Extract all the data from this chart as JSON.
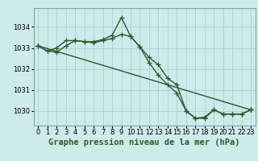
{
  "background_color": "#ceeaea",
  "grid_color": "#b0d4d4",
  "line_color": "#2d5a2d",
  "title": "Graphe pression niveau de la mer (hPa)",
  "xlim": [
    -0.5,
    23.5
  ],
  "ylim": [
    1029.3,
    1034.9
  ],
  "yticks": [
    1030,
    1031,
    1032,
    1033,
    1034
  ],
  "xticks": [
    0,
    1,
    2,
    3,
    4,
    5,
    6,
    7,
    8,
    9,
    10,
    11,
    12,
    13,
    14,
    15,
    16,
    17,
    18,
    19,
    20,
    21,
    22,
    23
  ],
  "series1_x": [
    0,
    1,
    2,
    3,
    4,
    5,
    6,
    7,
    8,
    9,
    10,
    11,
    12,
    13,
    14,
    15,
    16,
    17,
    18,
    19,
    20,
    21,
    22,
    23
  ],
  "series1_y": [
    1033.1,
    1032.85,
    1033.0,
    1033.35,
    1033.35,
    1033.3,
    1033.3,
    1033.4,
    1033.6,
    1034.45,
    1033.55,
    1033.05,
    1032.55,
    1032.2,
    1031.55,
    1031.25,
    1030.0,
    1029.65,
    1029.65,
    1030.05,
    1029.85,
    1029.85,
    1029.85,
    1030.05
  ],
  "series2_x": [
    0,
    1,
    2,
    3,
    4,
    5,
    6,
    7,
    8,
    9,
    10,
    11,
    12,
    13,
    14,
    15,
    16,
    17,
    18,
    19,
    20,
    21,
    22,
    23
  ],
  "series2_y": [
    1033.1,
    1032.85,
    1032.8,
    1033.1,
    1033.35,
    1033.3,
    1033.25,
    1033.35,
    1033.45,
    1033.65,
    1033.55,
    1033.05,
    1032.3,
    1031.7,
    1031.25,
    1030.85,
    1030.0,
    1029.65,
    1029.7,
    1030.05,
    1029.85,
    1029.85,
    1029.85,
    1030.05
  ],
  "series3_x": [
    0,
    23
  ],
  "series3_y": [
    1033.1,
    1030.05
  ],
  "marker_size": 3,
  "line_width": 1.0,
  "title_fontsize": 7.5,
  "tick_fontsize": 6.0
}
